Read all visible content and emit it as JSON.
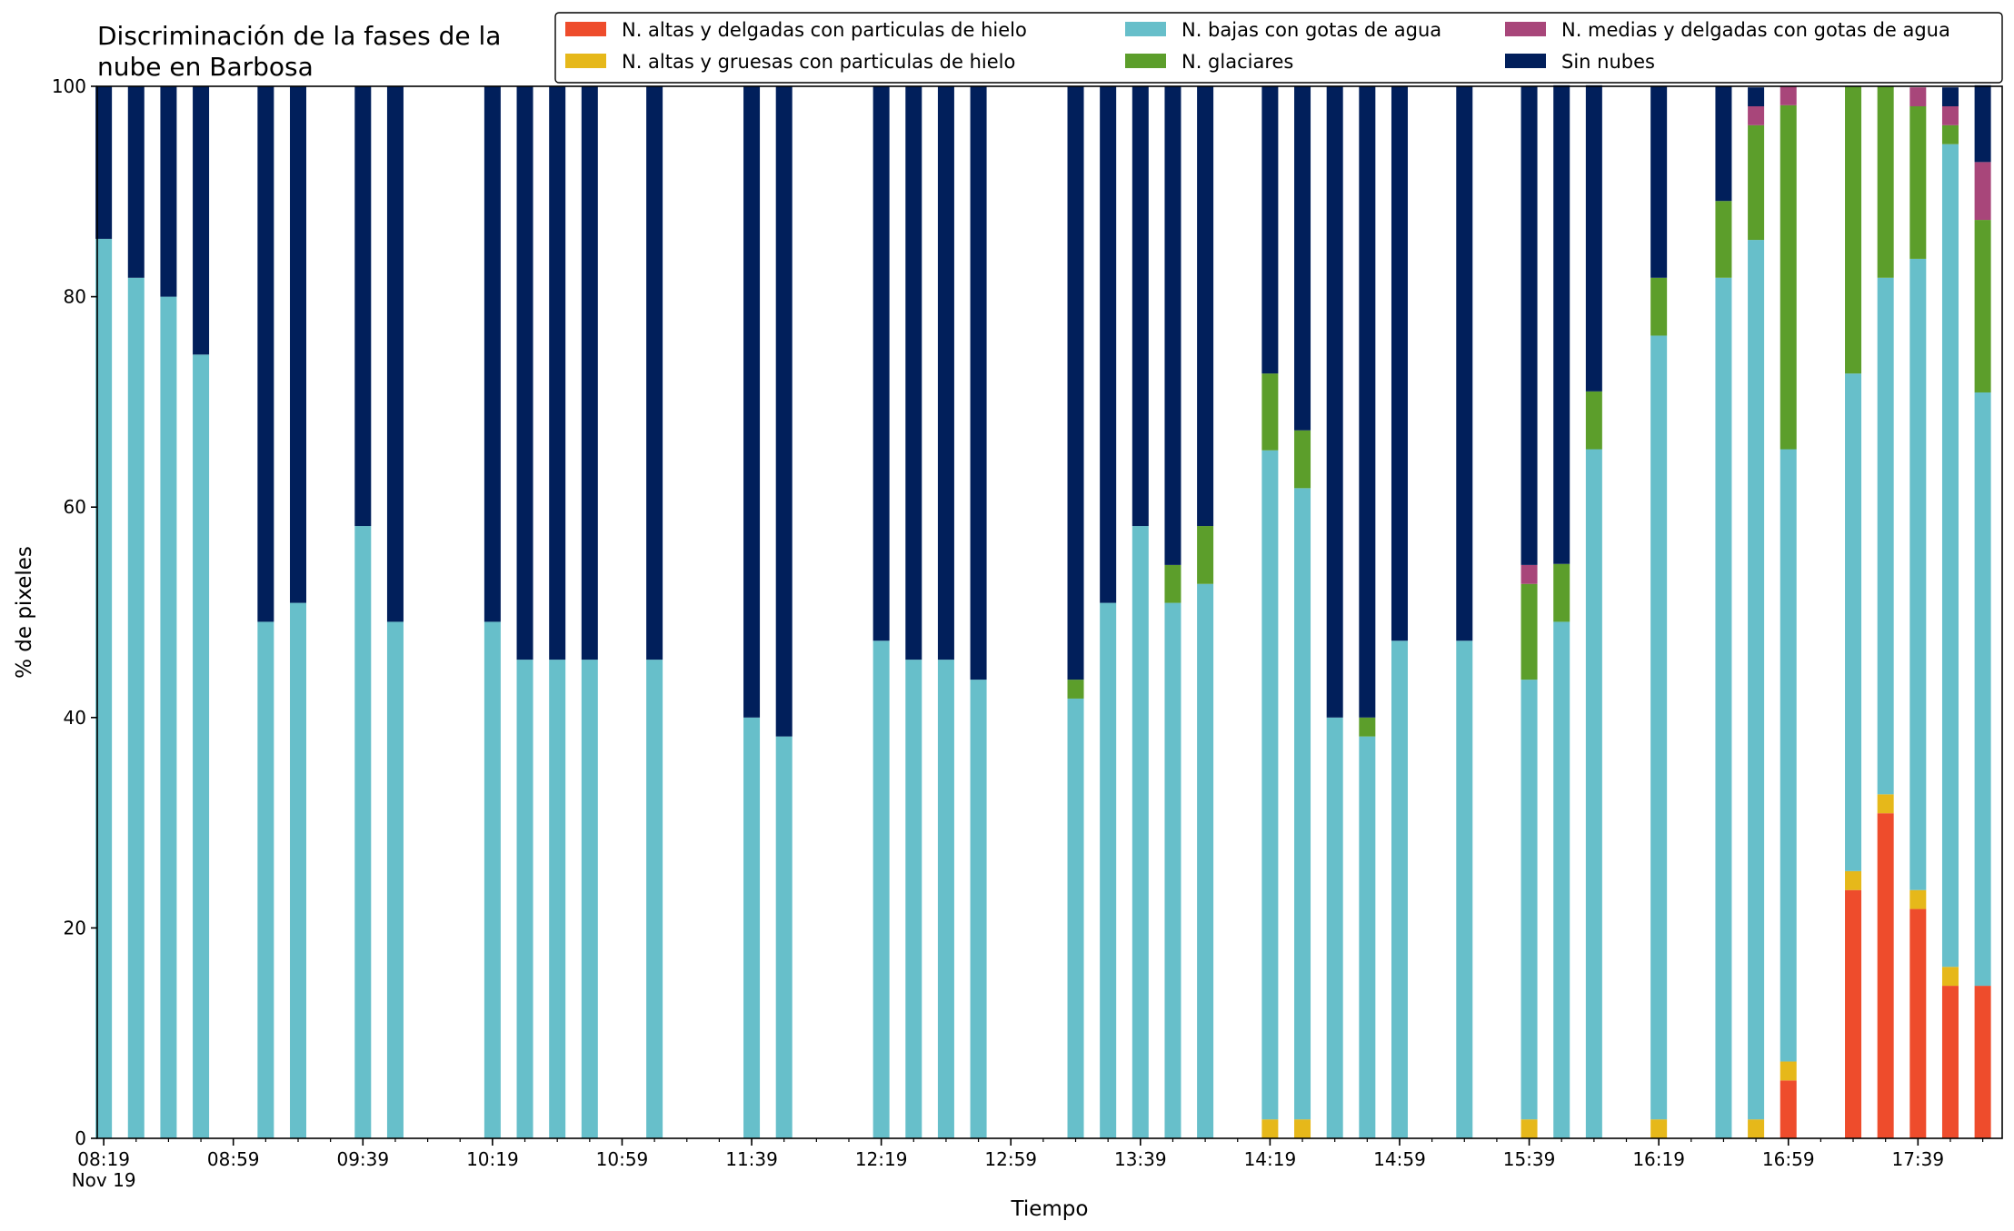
{
  "chart_data": {
    "type": "bar",
    "stacked": true,
    "title_lines": [
      "Discriminación de la fases de la",
      "nube en Barbosa"
    ],
    "xlabel": "Tiempo",
    "ylabel": "% de pixeles",
    "ylim": [
      0,
      100
    ],
    "yticks": [
      0,
      20,
      40,
      60,
      80,
      100
    ],
    "x_range_minutes": [
      497,
      1085
    ],
    "major_ticks": [
      {
        "t": 499,
        "label": "08:19",
        "sublabel": "Nov 19"
      },
      {
        "t": 539,
        "label": "08:59"
      },
      {
        "t": 579,
        "label": "09:39"
      },
      {
        "t": 619,
        "label": "10:19"
      },
      {
        "t": 659,
        "label": "10:59"
      },
      {
        "t": 699,
        "label": "11:39"
      },
      {
        "t": 739,
        "label": "12:19"
      },
      {
        "t": 779,
        "label": "12:59"
      },
      {
        "t": 819,
        "label": "13:39"
      },
      {
        "t": 859,
        "label": "14:19"
      },
      {
        "t": 899,
        "label": "14:59"
      },
      {
        "t": 939,
        "label": "15:39"
      },
      {
        "t": 979,
        "label": "16:19"
      },
      {
        "t": 1019,
        "label": "16:59"
      },
      {
        "t": 1059,
        "label": "17:39"
      }
    ],
    "minor_tick_step_minutes": 10,
    "grid": false,
    "legend_position": "top-right",
    "series": [
      {
        "name": "N. altas y delgadas con particulas de hielo",
        "color": "#ee4c2c"
      },
      {
        "name": "N. altas y gruesas con particulas de hielo",
        "color": "#e6b81a"
      },
      {
        "name": "N. bajas con gotas de agua",
        "color": "#67bfca"
      },
      {
        "name": "N. glaciares",
        "color": "#5c9e2b"
      },
      {
        "name": "N. medias y delgadas con gotas de agua",
        "color": "#a8467a"
      },
      {
        "name": "Sin nubes",
        "color": "#011f5b"
      }
    ],
    "bars": [
      {
        "t": 499,
        "values": [
          0,
          0,
          85.5,
          0,
          0,
          14.5
        ]
      },
      {
        "t": 509,
        "values": [
          0,
          0,
          81.8,
          0,
          0,
          18.2
        ]
      },
      {
        "t": 519,
        "values": [
          0,
          0,
          80.0,
          0,
          0,
          20.0
        ]
      },
      {
        "t": 529,
        "values": [
          0,
          0,
          74.5,
          0,
          0,
          25.5
        ]
      },
      {
        "t": 549,
        "values": [
          0,
          0,
          49.1,
          0,
          0,
          50.9
        ]
      },
      {
        "t": 559,
        "values": [
          0,
          0,
          50.9,
          0,
          0,
          49.1
        ]
      },
      {
        "t": 579,
        "values": [
          0,
          0,
          58.2,
          0,
          0,
          41.8
        ]
      },
      {
        "t": 589,
        "values": [
          0,
          0,
          49.1,
          0,
          0,
          50.9
        ]
      },
      {
        "t": 619,
        "values": [
          0,
          0,
          49.1,
          0,
          0,
          50.9
        ]
      },
      {
        "t": 629,
        "values": [
          0,
          0,
          45.5,
          0,
          0,
          54.5
        ]
      },
      {
        "t": 639,
        "values": [
          0,
          0,
          45.5,
          0,
          0,
          54.5
        ]
      },
      {
        "t": 649,
        "values": [
          0,
          0,
          45.5,
          0,
          0,
          54.5
        ]
      },
      {
        "t": 669,
        "values": [
          0,
          0,
          45.5,
          0,
          0,
          54.5
        ]
      },
      {
        "t": 699,
        "values": [
          0,
          0,
          40.0,
          0,
          0,
          60.0
        ]
      },
      {
        "t": 709,
        "values": [
          0,
          0,
          38.2,
          0,
          0,
          61.8
        ]
      },
      {
        "t": 739,
        "values": [
          0,
          0,
          47.3,
          0,
          0,
          52.7
        ]
      },
      {
        "t": 749,
        "values": [
          0,
          0,
          45.5,
          0,
          0,
          54.5
        ]
      },
      {
        "t": 759,
        "values": [
          0,
          0,
          45.5,
          0,
          0,
          54.5
        ]
      },
      {
        "t": 769,
        "values": [
          0,
          0,
          43.6,
          0,
          0,
          56.4
        ]
      },
      {
        "t": 799,
        "values": [
          0,
          0,
          41.8,
          1.8,
          0,
          56.4
        ]
      },
      {
        "t": 809,
        "values": [
          0,
          0,
          50.9,
          0,
          0,
          49.1
        ]
      },
      {
        "t": 819,
        "values": [
          0,
          0,
          58.2,
          0,
          0,
          41.8
        ]
      },
      {
        "t": 829,
        "values": [
          0,
          0,
          50.9,
          3.6,
          0,
          45.5
        ]
      },
      {
        "t": 839,
        "values": [
          0,
          0,
          52.7,
          5.5,
          0,
          41.8
        ]
      },
      {
        "t": 859,
        "values": [
          0,
          1.8,
          63.6,
          7.3,
          0,
          27.3
        ]
      },
      {
        "t": 869,
        "values": [
          0,
          1.8,
          60.0,
          5.5,
          0,
          32.7
        ]
      },
      {
        "t": 879,
        "values": [
          0,
          0,
          40.0,
          0,
          0,
          60.0
        ]
      },
      {
        "t": 889,
        "values": [
          0,
          0,
          38.2,
          1.8,
          0,
          60.0
        ]
      },
      {
        "t": 899,
        "values": [
          0,
          0,
          47.3,
          0,
          0,
          52.7
        ]
      },
      {
        "t": 919,
        "values": [
          0,
          0,
          47.3,
          0,
          0,
          52.7
        ]
      },
      {
        "t": 939,
        "values": [
          0,
          1.8,
          41.8,
          9.1,
          1.8,
          45.5
        ]
      },
      {
        "t": 949,
        "values": [
          0,
          0,
          49.1,
          5.5,
          0,
          45.5
        ]
      },
      {
        "t": 959,
        "values": [
          0,
          0,
          65.5,
          5.5,
          0,
          29.1
        ]
      },
      {
        "t": 979,
        "values": [
          0,
          1.8,
          74.5,
          5.5,
          0,
          18.2
        ]
      },
      {
        "t": 999,
        "values": [
          0,
          0,
          81.8,
          7.3,
          0,
          10.9
        ]
      },
      {
        "t": 1009,
        "values": [
          0,
          1.8,
          83.6,
          10.9,
          1.8,
          1.8
        ]
      },
      {
        "t": 1019,
        "values": [
          5.5,
          1.8,
          58.2,
          32.7,
          1.8,
          0
        ]
      },
      {
        "t": 1039,
        "values": [
          23.6,
          1.8,
          47.3,
          27.3,
          0,
          0
        ]
      },
      {
        "t": 1049,
        "values": [
          30.9,
          1.8,
          49.1,
          18.2,
          0,
          0
        ]
      },
      {
        "t": 1059,
        "values": [
          21.8,
          1.8,
          60.0,
          14.5,
          1.8,
          0
        ]
      },
      {
        "t": 1069,
        "values": [
          14.5,
          1.8,
          78.2,
          1.8,
          1.8,
          1.8
        ]
      },
      {
        "t": 1079,
        "values": [
          14.5,
          0,
          56.4,
          16.4,
          5.5,
          7.3
        ]
      }
    ]
  }
}
